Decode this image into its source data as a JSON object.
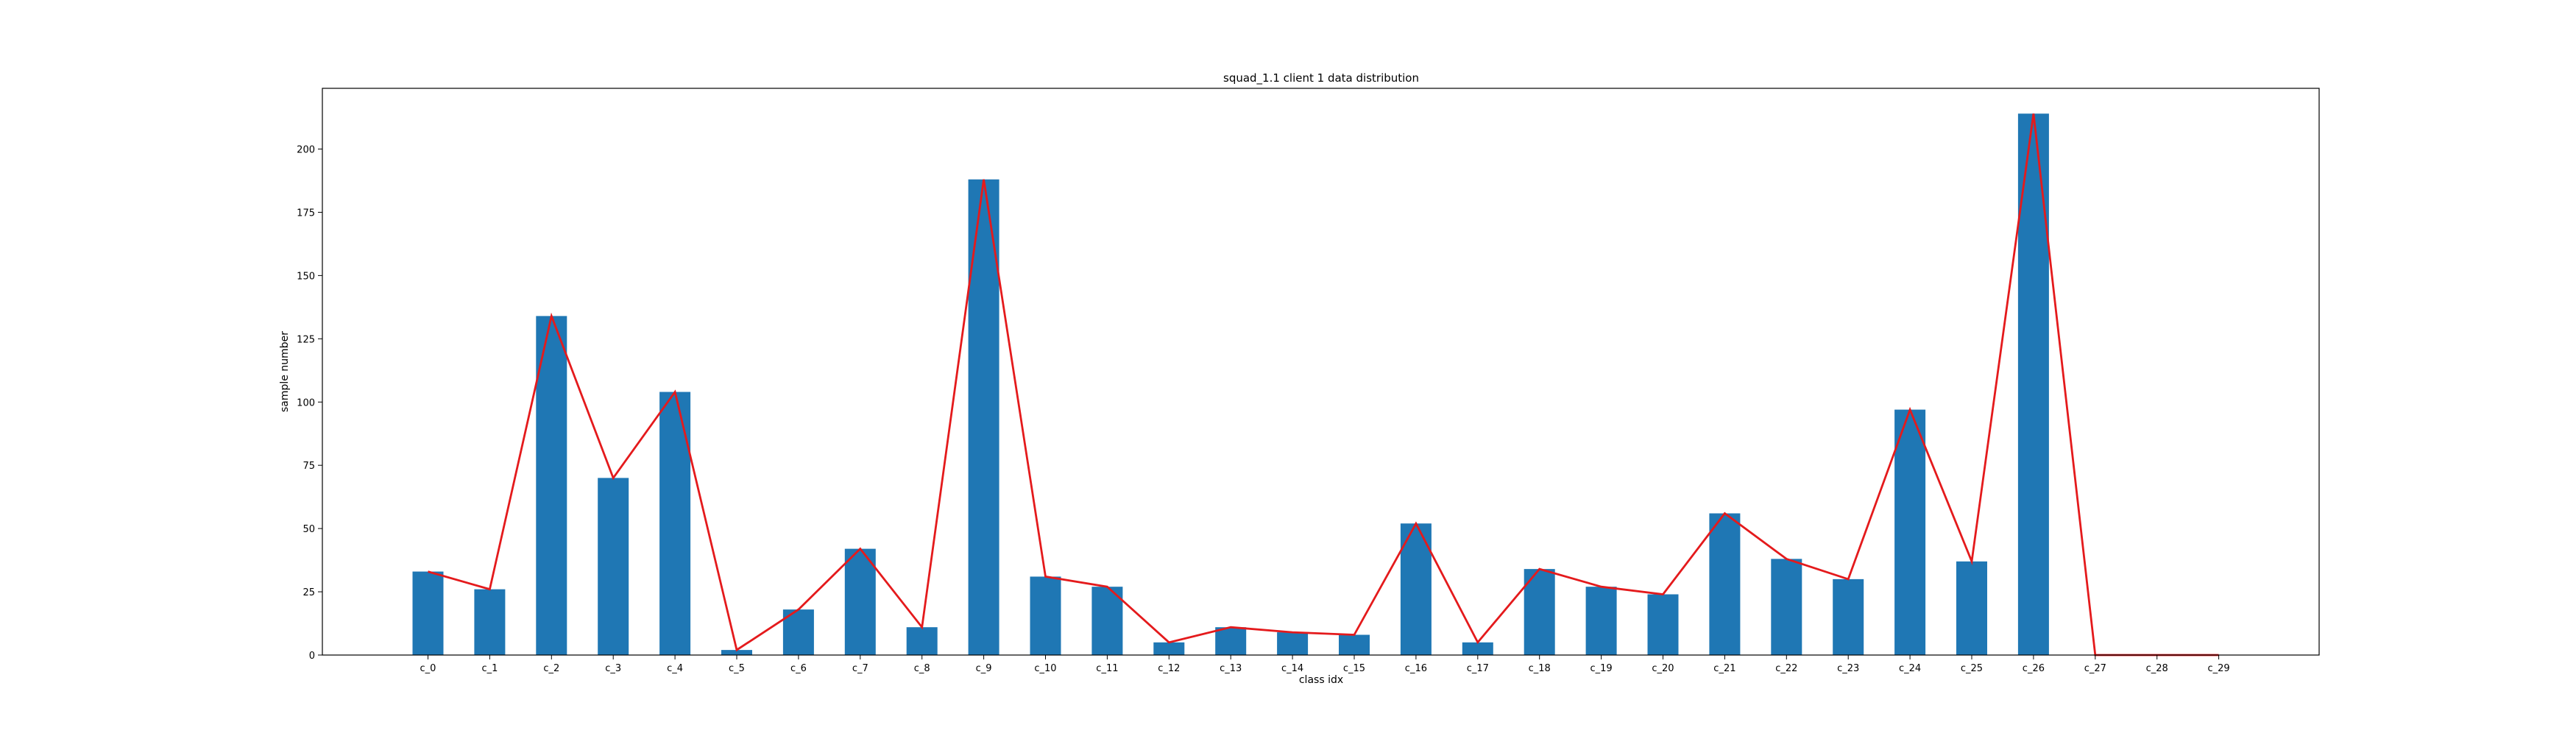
{
  "chart_data": {
    "type": "bar",
    "title": "squad_1.1 client 1 data distribution",
    "xlabel": "class idx",
    "ylabel": "sample number",
    "categories": [
      "c_0",
      "c_1",
      "c_2",
      "c_3",
      "c_4",
      "c_5",
      "c_6",
      "c_7",
      "c_8",
      "c_9",
      "c_10",
      "c_11",
      "c_12",
      "c_13",
      "c_14",
      "c_15",
      "c_16",
      "c_17",
      "c_18",
      "c_19",
      "c_20",
      "c_21",
      "c_22",
      "c_23",
      "c_24",
      "c_25",
      "c_26",
      "c_27",
      "c_28",
      "c_29"
    ],
    "values": [
      33,
      26,
      134,
      70,
      104,
      2,
      18,
      42,
      11,
      188,
      31,
      27,
      5,
      11,
      9,
      8,
      52,
      5,
      34,
      27,
      24,
      56,
      38,
      30,
      97,
      37,
      214,
      0,
      0,
      0
    ],
    "ylim": [
      0,
      224
    ],
    "yticks": [
      0,
      25,
      50,
      75,
      100,
      125,
      150,
      175,
      200
    ],
    "grid": false,
    "line_overlay": true,
    "colors": {
      "bar": "#1f77b4",
      "line": "#e41a1c",
      "axis": "#000000"
    }
  }
}
